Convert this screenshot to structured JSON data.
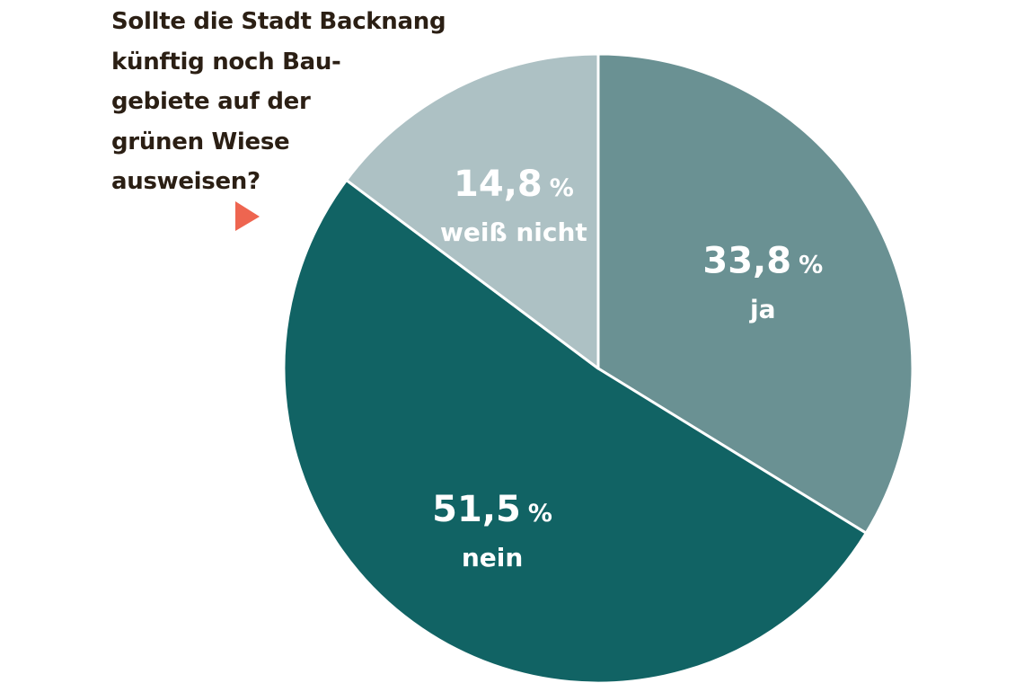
{
  "chart_data": {
    "type": "pie",
    "title": "Sollte die Stadt Backnang\nkünftig noch Bau-\ngebiete auf der\ngrünen Wiese\nausweisen?",
    "slices": [
      {
        "label": "ja",
        "value": 33.8,
        "value_text": "33,8",
        "color": "#6a9193"
      },
      {
        "label": "nein",
        "value": 51.5,
        "value_text": "51,5",
        "color": "#116364"
      },
      {
        "label": "weiß nicht",
        "value": 14.8,
        "value_text": "14,8",
        "color": "#adc1c4"
      }
    ],
    "unit": "%",
    "pointer_color": "#ee6550",
    "start_angle": "12 o'clock",
    "direction": "clockwise"
  }
}
